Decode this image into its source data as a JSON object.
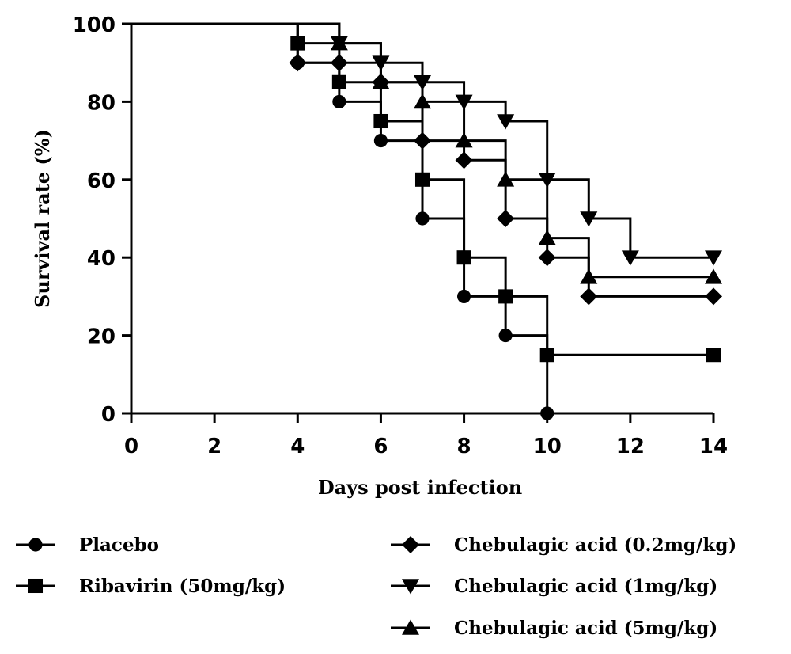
{
  "chart_data": {
    "type": "line",
    "subtype": "kaplan-meier survival (step)",
    "xlabel": "Days post infection",
    "ylabel": "Survival rate (%)",
    "xlim": [
      0,
      14
    ],
    "ylim": [
      0,
      100
    ],
    "xticks": [
      "0",
      "2",
      "4",
      "6",
      "8",
      "10",
      "12",
      "14"
    ],
    "yticks": [
      "0",
      "20",
      "40",
      "60",
      "80",
      "100"
    ],
    "xtick_values": [
      0,
      2,
      4,
      6,
      8,
      10,
      12,
      14
    ],
    "ytick_values": [
      0,
      20,
      40,
      60,
      80,
      100
    ],
    "grid": false,
    "legend_position": "bottom",
    "series": [
      {
        "name": "Placebo",
        "marker": "circle",
        "x": [
          4,
          5,
          6,
          7,
          8,
          9,
          10
        ],
        "y": [
          90,
          80,
          70,
          50,
          30,
          20,
          0
        ]
      },
      {
        "name": "Ribavirin (50mg/kg)",
        "marker": "square",
        "x": [
          4,
          5,
          6,
          7,
          8,
          9,
          10,
          14
        ],
        "y": [
          95,
          85,
          75,
          60,
          40,
          30,
          15,
          15
        ]
      },
      {
        "name": "Chebulagic acid (0.2mg/kg)",
        "marker": "diamond",
        "x": [
          4,
          5,
          6,
          7,
          8,
          9,
          10,
          11,
          14
        ],
        "y": [
          90,
          90,
          85,
          70,
          65,
          50,
          40,
          30,
          30
        ]
      },
      {
        "name": "Chebulagic acid (1mg/kg)",
        "marker": "triangle-down",
        "x": [
          5,
          6,
          7,
          8,
          9,
          10,
          11,
          12,
          14
        ],
        "y": [
          95,
          90,
          85,
          80,
          75,
          60,
          50,
          40,
          40
        ]
      },
      {
        "name": "Chebulagic acid (5mg/kg)",
        "marker": "triangle-up",
        "x": [
          5,
          6,
          7,
          8,
          9,
          10,
          11,
          14
        ],
        "y": [
          95,
          85,
          80,
          70,
          60,
          45,
          35,
          35
        ]
      }
    ]
  }
}
